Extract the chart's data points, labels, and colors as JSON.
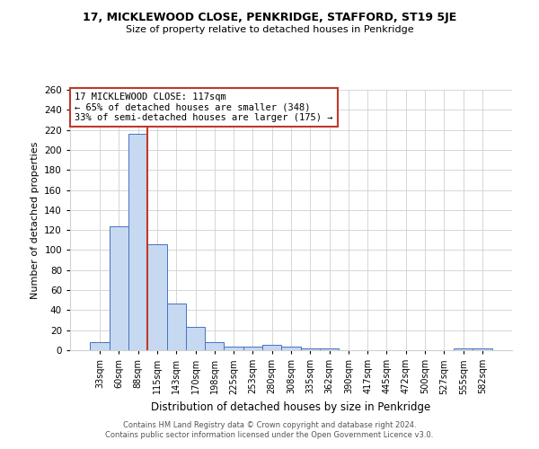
{
  "title1": "17, MICKLEWOOD CLOSE, PENKRIDGE, STAFFORD, ST19 5JE",
  "title2": "Size of property relative to detached houses in Penkridge",
  "xlabel": "Distribution of detached houses by size in Penkridge",
  "ylabel": "Number of detached properties",
  "footnote1": "Contains HM Land Registry data © Crown copyright and database right 2024.",
  "footnote2": "Contains public sector information licensed under the Open Government Licence v3.0.",
  "annotation_line1": "17 MICKLEWOOD CLOSE: 117sqm",
  "annotation_line2": "← 65% of detached houses are smaller (348)",
  "annotation_line3": "33% of semi-detached houses are larger (175) →",
  "bar_labels": [
    "33sqm",
    "60sqm",
    "88sqm",
    "115sqm",
    "143sqm",
    "170sqm",
    "198sqm",
    "225sqm",
    "253sqm",
    "280sqm",
    "308sqm",
    "335sqm",
    "362sqm",
    "390sqm",
    "417sqm",
    "445sqm",
    "472sqm",
    "500sqm",
    "527sqm",
    "555sqm",
    "582sqm"
  ],
  "bar_values": [
    8,
    124,
    216,
    106,
    47,
    23,
    8,
    4,
    4,
    5,
    4,
    2,
    2,
    0,
    0,
    0,
    0,
    0,
    0,
    2,
    2
  ],
  "bar_color": "#c6d9f0",
  "bar_edge_color": "#4472c4",
  "vline_color": "#c0392b",
  "box_color": "#c0392b",
  "ylim": [
    0,
    260
  ],
  "yticks": [
    0,
    20,
    40,
    60,
    80,
    100,
    120,
    140,
    160,
    180,
    200,
    220,
    240,
    260
  ],
  "background_color": "#ffffff",
  "grid_color": "#d0d0d0"
}
